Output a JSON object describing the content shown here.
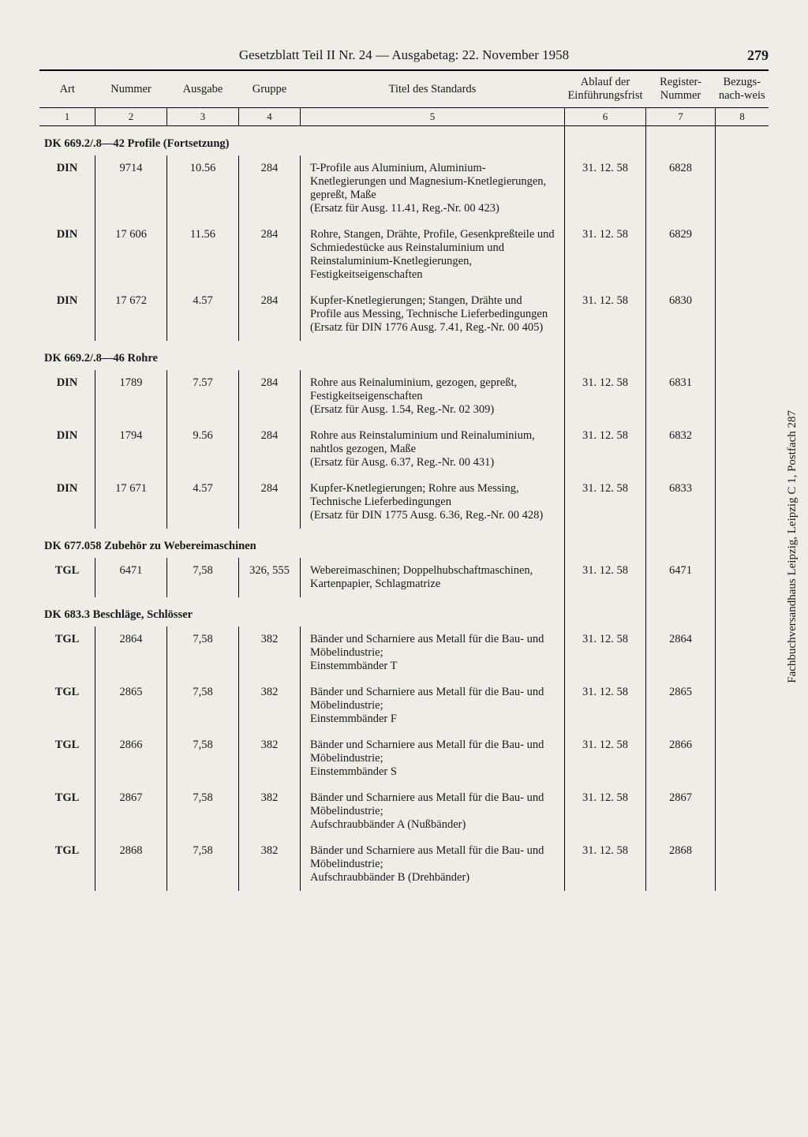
{
  "header": {
    "title": "Gesetzblatt Teil II Nr. 24 — Ausgabetag: 22. November 1958",
    "page_number": "279"
  },
  "vertical_note": "Fachbuchversandhaus Leipzig, Leipzig C 1, Postfach 287",
  "columns": {
    "headers": [
      "Art",
      "Nummer",
      "Ausgabe",
      "Gruppe",
      "Titel des Standards",
      "Ablauf der Einführungsfrist",
      "Register-Nummer",
      "Bezugs-nach-weis"
    ],
    "numbers": [
      "1",
      "2",
      "3",
      "4",
      "5",
      "6",
      "7",
      "8"
    ]
  },
  "sections": [
    {
      "heading": "DK 669.2/.8—42 Profile (Fortsetzung)",
      "rows": [
        {
          "art": "DIN",
          "num": "9714",
          "ausg": "10.56",
          "grp": "284",
          "title": "T-Profile aus Aluminium, Aluminium-Knetlegierungen und Magnesium-Knetlegierungen, gepreßt, Maße\n(Ersatz für Ausg. 11.41, Reg.-Nr. 00 423)",
          "frist": "31. 12. 58",
          "reg": "6828",
          "bez": ""
        },
        {
          "art": "DIN",
          "num": "17 606",
          "ausg": "11.56",
          "grp": "284",
          "title": "Rohre, Stangen, Drähte, Profile, Gesenkpreßteile und Schmiedestücke aus Reinstaluminium und Reinstaluminium-Knetlegierungen, Festigkeitseigenschaften",
          "frist": "31. 12. 58",
          "reg": "6829",
          "bez": ""
        },
        {
          "art": "DIN",
          "num": "17 672",
          "ausg": "4.57",
          "grp": "284",
          "title": "Kupfer-Knetlegierungen; Stangen, Drähte und Profile aus Messing, Technische Lieferbedingungen\n(Ersatz für DIN 1776 Ausg. 7.41, Reg.-Nr. 00 405)",
          "frist": "31. 12. 58",
          "reg": "6830",
          "bez": ""
        }
      ]
    },
    {
      "heading": "DK 669.2/.8—46 Rohre",
      "rows": [
        {
          "art": "DIN",
          "num": "1789",
          "ausg": "7.57",
          "grp": "284",
          "title": "Rohre aus Reinaluminium, gezogen, gepreßt, Festigkeitseigenschaften\n(Ersatz für Ausg. 1.54, Reg.-Nr. 02 309)",
          "frist": "31. 12. 58",
          "reg": "6831",
          "bez": ""
        },
        {
          "art": "DIN",
          "num": "1794",
          "ausg": "9.56",
          "grp": "284",
          "title": "Rohre aus Reinstaluminium und Reinaluminium, nahtlos gezogen, Maße\n(Ersatz für Ausg. 6.37, Reg.-Nr. 00 431)",
          "frist": "31. 12. 58",
          "reg": "6832",
          "bez": ""
        },
        {
          "art": "DIN",
          "num": "17 671",
          "ausg": "4.57",
          "grp": "284",
          "title": "Kupfer-Knetlegierungen; Rohre aus Messing, Technische Lieferbedingungen\n(Ersatz für DIN 1775 Ausg. 6.36, Reg.-Nr. 00 428)",
          "frist": "31. 12. 58",
          "reg": "6833",
          "bez": ""
        }
      ]
    },
    {
      "heading": "DK 677.058 Zubehör zu Webereimaschinen",
      "rows": [
        {
          "art": "TGL",
          "num": "6471",
          "ausg": "7,58",
          "grp": "326, 555",
          "title": "Webereimaschinen; Doppelhubschaftmaschinen, Kartenpapier, Schlagmatrize",
          "frist": "31. 12. 58",
          "reg": "6471",
          "bez": ""
        }
      ]
    },
    {
      "heading": "DK 683.3 Beschläge, Schlösser",
      "rows": [
        {
          "art": "TGL",
          "num": "2864",
          "ausg": "7,58",
          "grp": "382",
          "title": "Bänder und Scharniere aus Metall für die Bau- und Möbelindustrie;\nEinstemmbänder T",
          "frist": "31. 12. 58",
          "reg": "2864",
          "bez": ""
        },
        {
          "art": "TGL",
          "num": "2865",
          "ausg": "7,58",
          "grp": "382",
          "title": "Bänder und Scharniere aus Metall für die Bau- und Möbelindustrie;\nEinstemmbänder F",
          "frist": "31. 12. 58",
          "reg": "2865",
          "bez": ""
        },
        {
          "art": "TGL",
          "num": "2866",
          "ausg": "7,58",
          "grp": "382",
          "title": "Bänder und Scharniere aus Metall für die Bau- und Möbelindustrie;\nEinstemmbänder S",
          "frist": "31. 12. 58",
          "reg": "2866",
          "bez": ""
        },
        {
          "art": "TGL",
          "num": "2867",
          "ausg": "7,58",
          "grp": "382",
          "title": "Bänder und Scharniere aus Metall für die Bau- und Möbelindustrie;\nAufschraubbänder A (Nußbänder)",
          "frist": "31. 12. 58",
          "reg": "2867",
          "bez": ""
        },
        {
          "art": "TGL",
          "num": "2868",
          "ausg": "7,58",
          "grp": "382",
          "title": "Bänder und Scharniere aus Metall für die Bau- und Möbelindustrie;\nAufschraubbänder B (Drehbänder)",
          "frist": "31. 12. 58",
          "reg": "2868",
          "bez": ""
        }
      ]
    }
  ]
}
